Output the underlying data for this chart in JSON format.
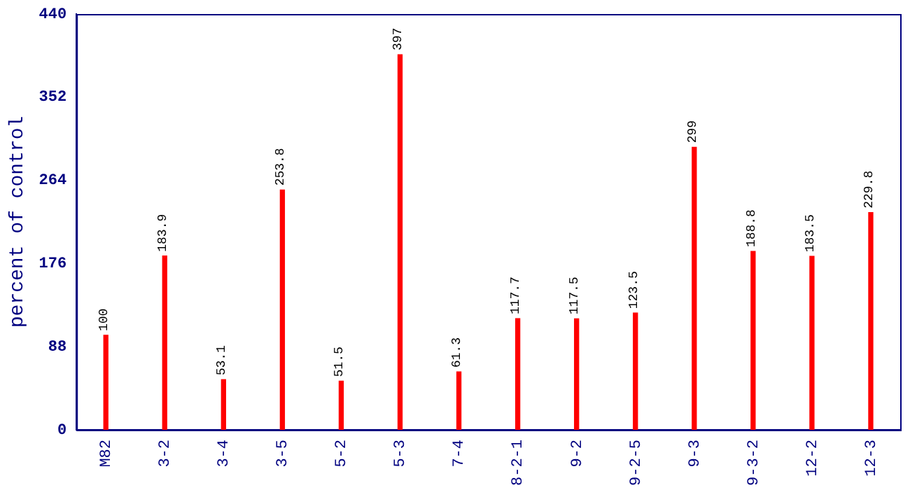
{
  "chart_data": {
    "type": "bar",
    "ylabel": "percent of control",
    "categories": [
      "M82",
      "3-2",
      "3-4",
      "3-5",
      "5-2",
      "5-3",
      "7-4",
      "8-2-1",
      "9-2",
      "9-2-5",
      "9-3",
      "9-3-2",
      "12-2",
      "12-3"
    ],
    "values": [
      100,
      183.9,
      53.1,
      253.8,
      51.5,
      397,
      61.3,
      117.7,
      117.5,
      123.5,
      299,
      188.8,
      183.5,
      229.8
    ],
    "color": "#ff0000",
    "ylim": [
      0,
      440
    ],
    "yticks": [
      0,
      88,
      176,
      264,
      352,
      440
    ],
    "data_labels": true,
    "grid": false,
    "legend": false
  }
}
